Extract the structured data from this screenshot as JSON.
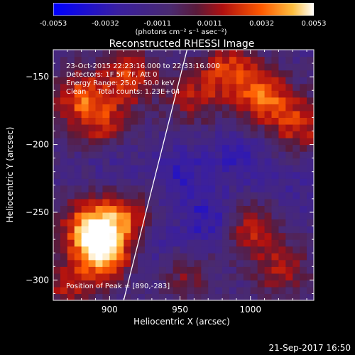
{
  "chart_data": {
    "type": "heatmap",
    "title": "Reconstructed RHESSI Image",
    "xlabel": "Heliocentric X (arcsec)",
    "ylabel": "Heliocentric Y (arcsec)",
    "xlim": [
      860,
      1045
    ],
    "ylim": [
      -315,
      -130
    ],
    "x_ticks": [
      900,
      950,
      1000
    ],
    "y_ticks": [
      -150,
      -200,
      -250,
      -300
    ],
    "colorbar": {
      "ticks": [
        "-0.0053",
        "-0.0032",
        "-0.0011",
        "0.0011",
        "0.0032",
        "0.0053"
      ],
      "range": [
        -0.0053,
        0.0053
      ],
      "unit": "(photons cm⁻² s⁻¹ asec⁻²)"
    },
    "annotations": {
      "time_range": "23-Oct-2015 22:23:16.000 to 22:33:16.000",
      "detectors": "Detectors: 1F 5F 7F, Att 0",
      "energy": "Energy Range: 25.0 - 50.0 keV",
      "clean": "Clean     Total counts: 1.23E+04",
      "peak": "Position of Peak = [890,-283]"
    },
    "peak": [
      890,
      -283
    ],
    "limb_line": [
      [
        910,
        -315
      ],
      [
        955,
        -130
      ]
    ],
    "sources": [
      {
        "x": 895,
        "y": -280,
        "value": 0.0053
      },
      {
        "x": 885,
        "y": -260,
        "value": 0.0044
      },
      {
        "x": 910,
        "y": -255,
        "value": 0.0036
      },
      {
        "x": 880,
        "y": -165,
        "value": 0.0036
      },
      {
        "x": 915,
        "y": -150,
        "value": 0.0033
      },
      {
        "x": 895,
        "y": -185,
        "value": 0.0026
      },
      {
        "x": 985,
        "y": -145,
        "value": 0.0034
      },
      {
        "x": 1010,
        "y": -165,
        "value": 0.0039
      },
      {
        "x": 1035,
        "y": -185,
        "value": 0.0031
      },
      {
        "x": 960,
        "y": -165,
        "value": 0.0024
      },
      {
        "x": 1000,
        "y": -262,
        "value": 0.0029
      },
      {
        "x": 1022,
        "y": -292,
        "value": 0.0026
      },
      {
        "x": 955,
        "y": -298,
        "value": 0.0019
      },
      {
        "x": 870,
        "y": -305,
        "value": 0.0024
      },
      {
        "x": 970,
        "y": -255,
        "value": -0.0022
      },
      {
        "x": 950,
        "y": -220,
        "value": -0.0018
      },
      {
        "x": 990,
        "y": -210,
        "value": -0.0016
      },
      {
        "x": 930,
        "y": -275,
        "value": -0.0012
      },
      {
        "x": 1030,
        "y": -230,
        "value": -0.001
      },
      {
        "x": 900,
        "y": -215,
        "value": -0.0008
      }
    ]
  },
  "footer": {
    "timestamp": "21-Sep-2017 16:50"
  }
}
